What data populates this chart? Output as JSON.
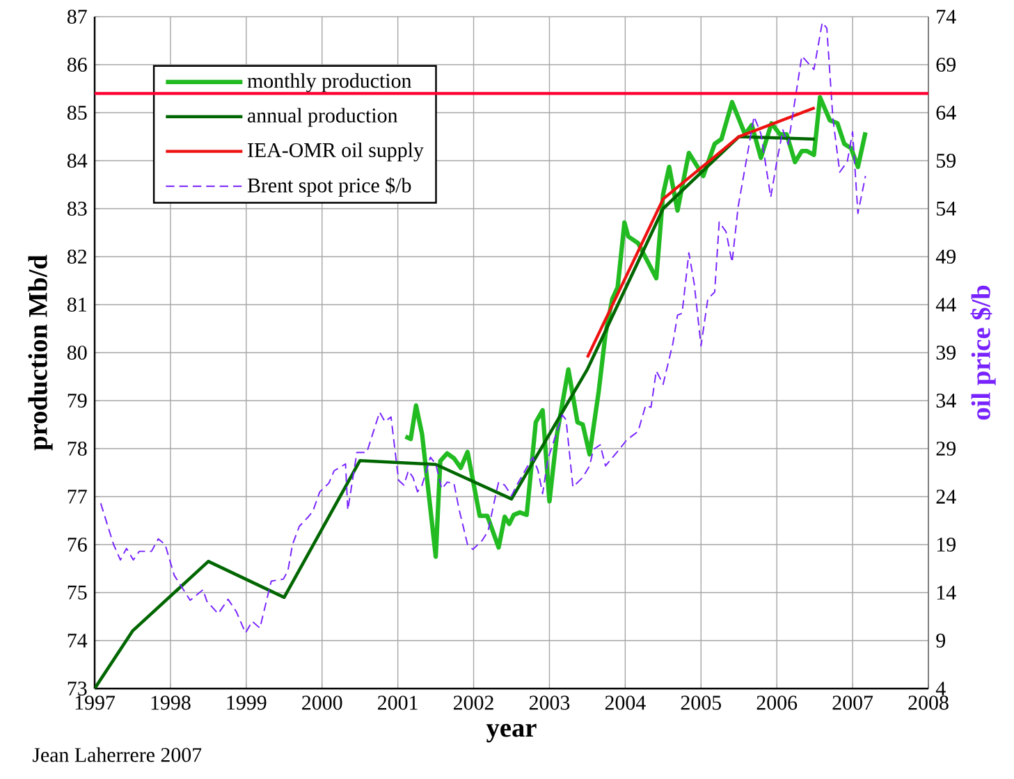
{
  "chart_data": {
    "type": "line",
    "xlabel": "year",
    "ylabel": "production Mb/d",
    "y2label": "oil price $/b",
    "annotations": [
      "Jean Laherrere 2007"
    ],
    "xlim": [
      1997,
      2008
    ],
    "ylim": [
      73,
      87
    ],
    "y2lim": [
      4,
      74
    ],
    "xticks": [
      1997,
      1998,
      1999,
      2000,
      2001,
      2002,
      2003,
      2004,
      2005,
      2006,
      2007,
      2008
    ],
    "yticks": [
      73,
      74,
      75,
      76,
      77,
      78,
      79,
      80,
      81,
      82,
      83,
      84,
      85,
      86,
      87
    ],
    "y2ticks": [
      4,
      9,
      14,
      19,
      24,
      29,
      34,
      39,
      44,
      49,
      54,
      59,
      64,
      69,
      74
    ],
    "grid": true,
    "legend": "top left",
    "ref_lines": [
      {
        "axis": "y",
        "value": 85.4,
        "color": "#ff0033"
      }
    ],
    "series": [
      {
        "name": "monthly production",
        "color": "#22bb22",
        "x": [
          2001.1,
          2001.17,
          2001.24,
          2001.32,
          2001.5,
          2001.56,
          2001.65,
          2001.74,
          2001.83,
          2001.92,
          2002.08,
          2002.18,
          2002.33,
          2002.41,
          2002.47,
          2002.53,
          2002.61,
          2002.7,
          2002.82,
          2002.91,
          2003.0,
          2003.1,
          2003.25,
          2003.37,
          2003.44,
          2003.53,
          2003.65,
          2003.74,
          2003.83,
          2003.9,
          2003.99,
          2004.04,
          2004.17,
          2004.41,
          2004.5,
          2004.58,
          2004.69,
          2004.84,
          2005.03,
          2005.18,
          2005.27,
          2005.41,
          2005.58,
          2005.67,
          2005.79,
          2005.93,
          2006.04,
          2006.13,
          2006.24,
          2006.33,
          2006.4,
          2006.49,
          2006.57,
          2006.7,
          2006.8,
          2006.89,
          2006.98,
          2007.07,
          2007.17
        ],
        "values": [
          78.25,
          78.2,
          78.9,
          78.3,
          75.75,
          77.74,
          77.9,
          77.8,
          77.6,
          77.93,
          76.6,
          76.6,
          75.94,
          76.58,
          76.43,
          76.62,
          76.67,
          76.62,
          78.55,
          78.8,
          76.9,
          78.3,
          79.65,
          78.55,
          78.5,
          77.88,
          79.19,
          80.39,
          81.12,
          81.36,
          82.71,
          82.42,
          82.28,
          81.55,
          83.3,
          83.87,
          82.96,
          84.16,
          83.68,
          84.35,
          84.45,
          85.22,
          84.55,
          84.74,
          84.06,
          84.78,
          84.55,
          84.55,
          83.97,
          84.2,
          84.2,
          84.12,
          85.32,
          84.84,
          84.78,
          84.35,
          84.26,
          83.87,
          84.59
        ]
      },
      {
        "name": "annual production",
        "color": "#006600",
        "x": [
          1997.0,
          1997.5,
          1998.5,
          1999.5,
          2000.5,
          2001.5,
          2002.5,
          2003.5,
          2004.5,
          2005.5,
          2006.5
        ],
        "values": [
          73.0,
          74.2,
          75.65,
          74.9,
          77.75,
          77.67,
          76.95,
          79.65,
          83.0,
          84.5,
          84.45
        ]
      },
      {
        "name": "IEA-OMR oil supply",
        "color": "#ee1111",
        "x": [
          2003.5,
          2004.5,
          2005.5,
          2006.5
        ],
        "values": [
          79.9,
          83.2,
          84.5,
          85.1
        ]
      },
      {
        "name": "Brent spot price $/b",
        "color": "#7722ff",
        "axis": "y2",
        "line_style": "dashed",
        "x": [
          1997.08,
          1997.25,
          1997.34,
          1997.42,
          1997.51,
          1997.59,
          1997.75,
          1997.84,
          1997.93,
          1998.05,
          1998.26,
          1998.43,
          1998.48,
          1998.63,
          1998.76,
          1998.87,
          1998.99,
          1999.08,
          1999.18,
          1999.33,
          1999.49,
          1999.55,
          1999.61,
          1999.7,
          1999.82,
          1999.88,
          1999.97,
          2000.09,
          2000.16,
          2000.31,
          2000.34,
          2000.46,
          2000.59,
          2000.76,
          2000.83,
          2000.91,
          2001.01,
          2001.08,
          2001.14,
          2001.2,
          2001.26,
          2001.32,
          2001.43,
          2001.5,
          2001.58,
          2001.65,
          2001.74,
          2001.81,
          2001.92,
          2001.99,
          2002.11,
          2002.19,
          2002.3,
          2002.33,
          2002.41,
          2002.5,
          2002.57,
          2002.7,
          2002.78,
          2002.85,
          2002.91,
          2002.98,
          2003.05,
          2003.17,
          2003.22,
          2003.31,
          2003.44,
          2003.53,
          2003.58,
          2003.67,
          2003.74,
          2003.91,
          2004.02,
          2004.17,
          2004.27,
          2004.34,
          2004.41,
          2004.5,
          2004.63,
          2004.69,
          2004.75,
          2004.84,
          2004.91,
          2005.0,
          2005.09,
          2005.18,
          2005.24,
          2005.33,
          2005.41,
          2005.49,
          2005.7,
          2005.79,
          2005.92,
          2006.0,
          2006.08,
          2006.15,
          2006.33,
          2006.49,
          2006.6,
          2006.66,
          2006.74,
          2006.83,
          2006.93,
          2007.0,
          2007.07,
          2007.17
        ],
        "values": [
          23.3,
          19.0,
          17.4,
          18.6,
          17.4,
          18.3,
          18.3,
          19.6,
          19.0,
          15.8,
          13.2,
          14.3,
          13.1,
          11.8,
          13.3,
          12.0,
          9.8,
          11.0,
          10.3,
          15.2,
          15.4,
          16.3,
          19.0,
          20.9,
          21.9,
          22.5,
          24.5,
          25.4,
          26.7,
          27.4,
          22.6,
          28.6,
          28.6,
          32.8,
          31.8,
          32.3,
          25.7,
          25.2,
          26.7,
          26.0,
          24.5,
          25.2,
          28.1,
          27.4,
          24.8,
          25.5,
          25.4,
          22.6,
          19.0,
          18.5,
          19.4,
          20.4,
          24.5,
          25.5,
          25.2,
          24.1,
          25.2,
          27.0,
          28.1,
          26.7,
          24.3,
          27.9,
          29.6,
          32.5,
          32.0,
          25.0,
          26.0,
          27.2,
          28.9,
          29.4,
          27.2,
          28.8,
          29.9,
          30.8,
          33.5,
          33.3,
          37.1,
          35.7,
          40.0,
          42.9,
          43.1,
          49.4,
          46.2,
          39.7,
          44.6,
          45.3,
          52.6,
          51.6,
          48.4,
          54.2,
          63.6,
          61.8,
          55.2,
          58.9,
          62.2,
          60.7,
          69.9,
          68.5,
          73.4,
          72.8,
          63.4,
          57.8,
          58.9,
          62.0,
          53.5,
          57.4
        ]
      }
    ]
  }
}
